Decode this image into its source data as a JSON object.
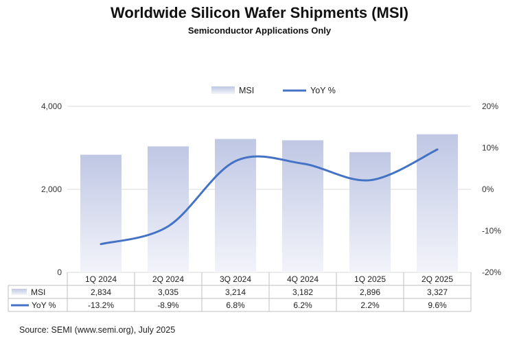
{
  "chart_data": {
    "type": "bar",
    "title": "Worldwide Silicon Wafer Shipments (MSI)",
    "subtitle": "Semiconductor Applications Only",
    "categories": [
      "1Q 2024",
      "2Q 2024",
      "3Q 2024",
      "4Q 2024",
      "1Q 2025",
      "2Q 2025"
    ],
    "series": [
      {
        "name": "MSI",
        "type": "bar",
        "axis": "left",
        "values": [
          2834,
          3035,
          3214,
          3182,
          2896,
          3327
        ],
        "labels": [
          "2,834",
          "3,035",
          "3,214",
          "3,182",
          "2,896",
          "3,327"
        ]
      },
      {
        "name": "YoY %",
        "type": "line",
        "axis": "right",
        "values": [
          -13.2,
          -8.9,
          6.8,
          6.2,
          2.2,
          9.6
        ],
        "labels": [
          "-13.2%",
          "-8.9%",
          "6.8%",
          "6.2%",
          "2.2%",
          "9.6%"
        ]
      }
    ],
    "y_left": {
      "range": [
        0,
        4000
      ],
      "ticks": [
        "0",
        "2,000",
        "4,000"
      ],
      "tick_values": [
        0,
        2000,
        4000
      ]
    },
    "y_right": {
      "range": [
        -20,
        20
      ],
      "ticks": [
        "-20%",
        "-10%",
        "0%",
        "10%",
        "20%"
      ],
      "tick_values": [
        -20,
        -10,
        0,
        10,
        20
      ]
    },
    "legend_position": "top-center",
    "grid": true,
    "data_table": true,
    "colors": {
      "bar_top": "#bfc7e4",
      "bar_bottom": "#f3f4fa",
      "line": "#4472c4",
      "grid": "#d9d9d9",
      "table_border": "#bfbfbf"
    }
  },
  "source": "Source: SEMI (www.semi.org), July 2025"
}
